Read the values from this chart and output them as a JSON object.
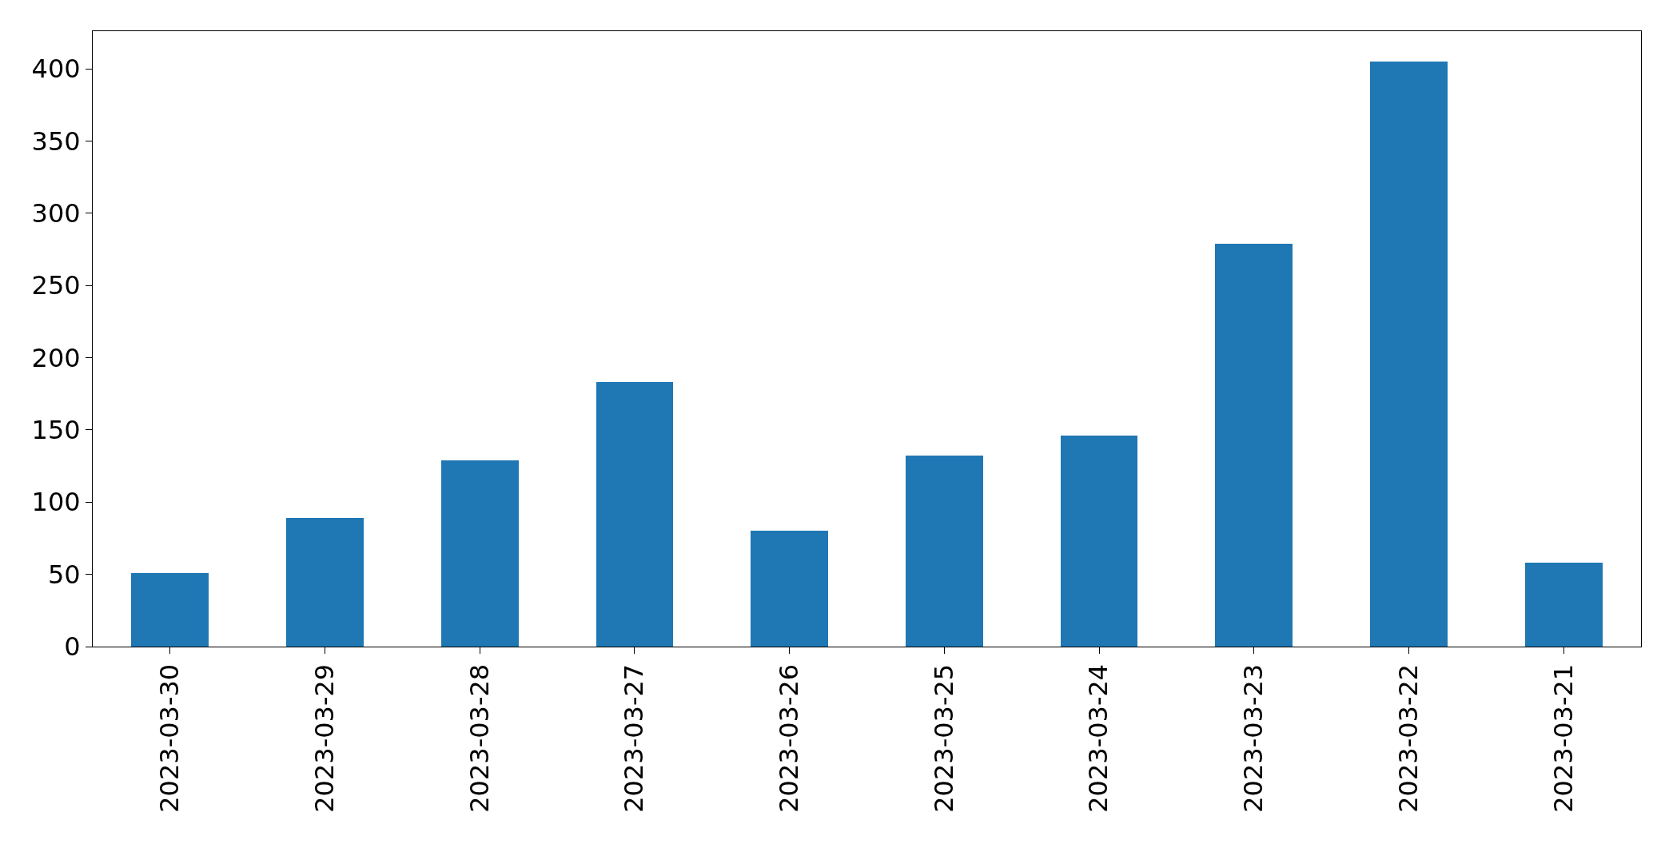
{
  "chart_data": {
    "type": "bar",
    "categories": [
      "2023-03-30",
      "2023-03-29",
      "2023-03-28",
      "2023-03-27",
      "2023-03-26",
      "2023-03-25",
      "2023-03-24",
      "2023-03-23",
      "2023-03-22",
      "2023-03-21"
    ],
    "values": [
      51,
      89,
      129,
      183,
      80,
      132,
      146,
      279,
      405,
      58
    ],
    "color": "#1f77b4",
    "ylim": [
      0,
      426
    ],
    "yticks": [
      0,
      50,
      100,
      150,
      200,
      250,
      300,
      350,
      400
    ],
    "legend": false
  }
}
